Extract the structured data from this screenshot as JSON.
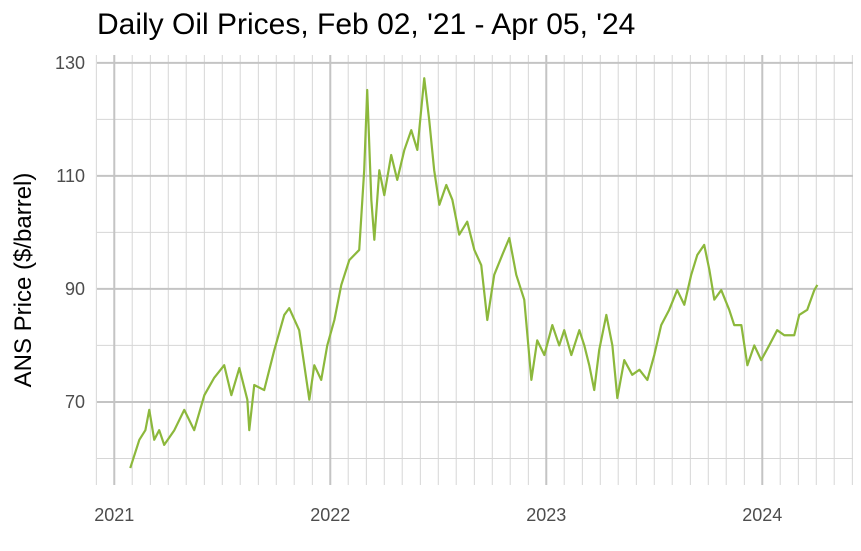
{
  "chart_data": {
    "type": "line",
    "title": "Daily Oil Prices, Feb 02, '21 - Apr 05, '24",
    "y_label": "ANS Price ($/barrel)",
    "x": [
      2021.074,
      2021.116,
      2021.144,
      2021.162,
      2021.185,
      2021.208,
      2021.231,
      2021.278,
      2021.324,
      2021.37,
      2021.417,
      2021.463,
      2021.509,
      2021.542,
      2021.579,
      2021.616,
      2021.625,
      2021.648,
      2021.694,
      2021.741,
      2021.787,
      2021.81,
      2021.856,
      2021.903,
      2021.926,
      2021.958,
      2021.986,
      2022.019,
      2022.051,
      2022.088,
      2022.134,
      2022.157,
      2022.171,
      2022.19,
      2022.204,
      2022.227,
      2022.25,
      2022.282,
      2022.31,
      2022.343,
      2022.375,
      2022.403,
      2022.435,
      2022.458,
      2022.481,
      2022.505,
      2022.537,
      2022.565,
      2022.597,
      2022.634,
      2022.667,
      2022.699,
      2022.727,
      2022.759,
      2022.796,
      2022.829,
      2022.861,
      2022.898,
      2022.931,
      2022.958,
      2022.991,
      2023.028,
      2023.06,
      2023.083,
      2023.116,
      2023.153,
      2023.176,
      2023.199,
      2023.222,
      2023.245,
      2023.278,
      2023.306,
      2023.329,
      2023.361,
      2023.398,
      2023.431,
      2023.468,
      2023.5,
      2023.532,
      2023.569,
      2023.606,
      2023.639,
      2023.671,
      2023.699,
      2023.731,
      2023.755,
      2023.778,
      2023.81,
      2023.847,
      2023.87,
      2023.903,
      2023.931,
      2023.963,
      2023.995,
      2024.032,
      2024.069,
      2024.102,
      2024.148,
      2024.171,
      2024.208,
      2024.241,
      2024.255
    ],
    "series": [
      {
        "name": "ANS Price",
        "color": "#8cb83c",
        "values": [
          58.3,
          63.3,
          65,
          68.6,
          63.3,
          65,
          62.4,
          65,
          68.6,
          65,
          71.2,
          74.3,
          76.5,
          71.2,
          76,
          70.4,
          65,
          73,
          72.1,
          79.2,
          85.4,
          86.6,
          82.7,
          70.4,
          76.5,
          73.9,
          80,
          84.5,
          90.7,
          95.1,
          96.9,
          111,
          125.2,
          105.8,
          98.7,
          111,
          106.6,
          113.7,
          109.3,
          114.6,
          118.1,
          114.6,
          127.3,
          119.9,
          111,
          104.9,
          108.4,
          105.8,
          99.6,
          101.9,
          96.9,
          94.2,
          84.5,
          92.5,
          96,
          99,
          92.5,
          88.1,
          73.9,
          80.9,
          78.3,
          83.6,
          80,
          82.7,
          78.3,
          82.7,
          80,
          76.5,
          72.1,
          79.2,
          85.4,
          80,
          70.7,
          77.4,
          74.8,
          75.7,
          73.9,
          78.3,
          83.6,
          86.3,
          89.8,
          87.2,
          92.5,
          96,
          97.8,
          93.4,
          88.1,
          89.8,
          86.3,
          83.6,
          83.6,
          76.5,
          80,
          77.4,
          80,
          82.7,
          81.8,
          81.8,
          85.4,
          86.3,
          89.8,
          90.7
        ]
      }
    ],
    "xlim": [
      2020.92,
      2024.42
    ],
    "xticks": [
      2021,
      2022,
      2023,
      2024
    ],
    "xminorticks": [
      2020.917,
      2021.083,
      2021.167,
      2021.25,
      2021.333,
      2021.417,
      2021.5,
      2021.583,
      2021.667,
      2021.75,
      2021.833,
      2021.917,
      2022.083,
      2022.167,
      2022.25,
      2022.333,
      2022.417,
      2022.5,
      2022.583,
      2022.667,
      2022.75,
      2022.833,
      2022.917,
      2023.083,
      2023.167,
      2023.25,
      2023.333,
      2023.417,
      2023.5,
      2023.583,
      2023.667,
      2023.75,
      2023.833,
      2023.917,
      2024.083,
      2024.167,
      2024.25,
      2024.333,
      2024.417
    ],
    "ylim": [
      55.3,
      131.4
    ],
    "yticks": [
      70,
      90,
      110,
      130
    ],
    "yminorticks": [
      60,
      80,
      100,
      120
    ],
    "grid": true
  }
}
